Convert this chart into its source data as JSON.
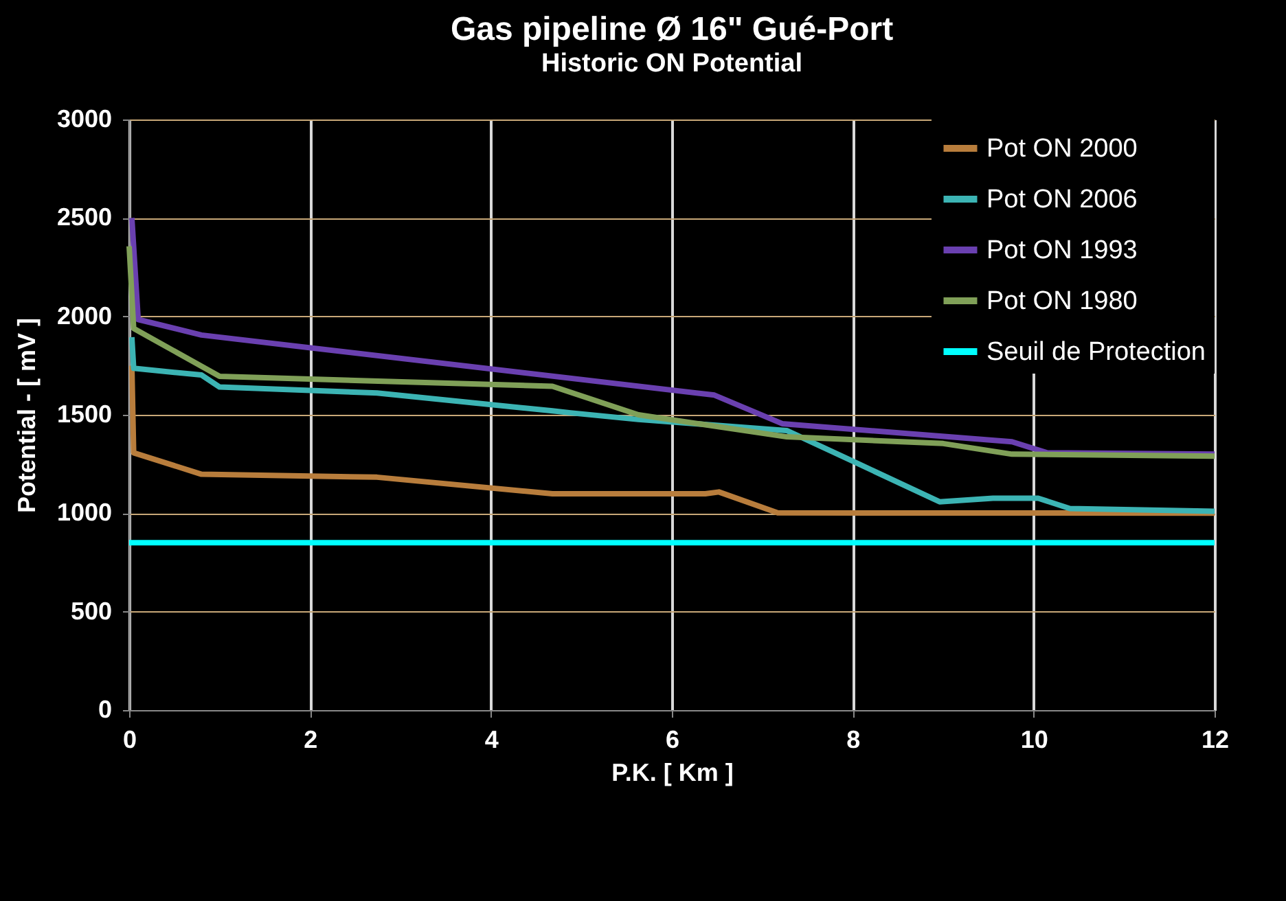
{
  "chart_data": {
    "type": "line",
    "title": "Gas pipeline Ø 16\" Gué-Port",
    "subtitle": "Historic ON  Potential",
    "xlabel": "P.K. [ Km ]",
    "ylabel": "Potential - [ mV ]",
    "xlim": [
      0,
      12
    ],
    "xticks": [
      0,
      2,
      4,
      6,
      8,
      10,
      12
    ],
    "ylim": [
      0,
      3000
    ],
    "yticks": [
      0,
      500,
      1000,
      1500,
      2000,
      2500,
      3000
    ],
    "grid": true,
    "legend": "top right",
    "line_style": "solid",
    "marker": "none",
    "series": [
      {
        "name": "Pot ON 2000",
        "color": "#b87d3c",
        "x": [
          0.03,
          0.05,
          0.8,
          2.74,
          4.68,
          6.37,
          6.52,
          7.17,
          12
        ],
        "values": [
          1750,
          1307,
          1198,
          1183,
          1099,
          1099,
          1108,
          1002,
          1000
        ]
      },
      {
        "name": "Pot ON 2006",
        "color": "#3cb4b4",
        "x": [
          0.03,
          0.05,
          0.8,
          1.0,
          2.74,
          4.68,
          4.88,
          5.63,
          7.27,
          8.01,
          8.96,
          9.55,
          10.05,
          10.4,
          12
        ],
        "values": [
          1894,
          1736,
          1702,
          1641,
          1611,
          1520,
          1510,
          1476,
          1420,
          1262,
          1058,
          1076,
          1076,
          1024,
          1010
        ]
      },
      {
        "name": "Pot ON 1993",
        "color": "#6a40b0",
        "x": [
          0.03,
          0.1,
          0.8,
          6.47,
          7.22,
          9.76,
          10.15,
          12
        ],
        "values": [
          2500,
          1984,
          1905,
          1600,
          1455,
          1363,
          1307,
          1300
        ]
      },
      {
        "name": "Pot ON 1980",
        "color": "#80a058",
        "x": [
          0.0,
          0.05,
          1.0,
          4.68,
          5.63,
          7.27,
          9.0,
          9.76,
          12
        ],
        "values": [
          2356,
          1939,
          1695,
          1645,
          1500,
          1388,
          1354,
          1300,
          1290
        ]
      },
      {
        "name": "Seuil de Protection",
        "color": "#00ffff",
        "x": [
          0,
          12
        ],
        "values": [
          850,
          850
        ]
      }
    ]
  }
}
